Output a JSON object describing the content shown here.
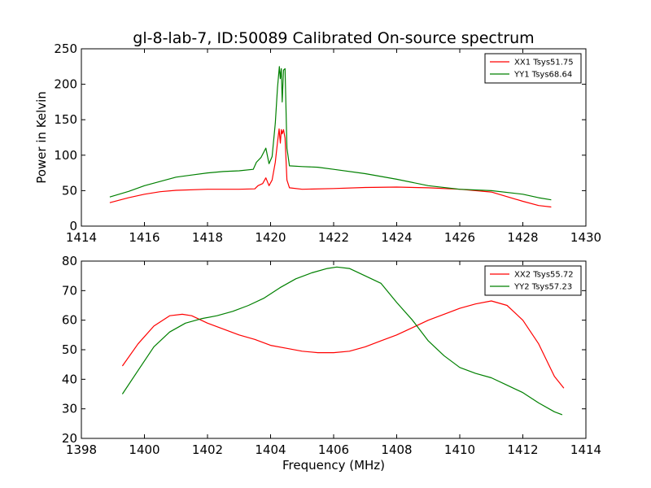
{
  "title": "gl-8-lab-7, ID:50089 Calibrated On-source spectrum",
  "chart_data": [
    {
      "type": "line",
      "title": "gl-8-lab-7, ID:50089 Calibrated On-source spectrum",
      "xlabel": "",
      "ylabel": "Power in Kelvin",
      "xlim": [
        1414,
        1430
      ],
      "ylim": [
        0,
        250
      ],
      "xticks": [
        1414,
        1416,
        1418,
        1420,
        1422,
        1424,
        1426,
        1428,
        1430
      ],
      "yticks": [
        0,
        50,
        100,
        150,
        200,
        250
      ],
      "grid": false,
      "legend_position": "top-right",
      "series": [
        {
          "name": "XX1 Tsys51.75",
          "color": "#ff0000",
          "points": [
            [
              1414.9,
              33
            ],
            [
              1415.5,
              40
            ],
            [
              1416,
              45
            ],
            [
              1416.5,
              48.5
            ],
            [
              1417,
              50.5
            ],
            [
              1418,
              52
            ],
            [
              1419,
              52
            ],
            [
              1419.5,
              52.5
            ],
            [
              1419.6,
              57
            ],
            [
              1419.75,
              60
            ],
            [
              1419.85,
              68
            ],
            [
              1419.95,
              57
            ],
            [
              1420.05,
              65
            ],
            [
              1420.15,
              90
            ],
            [
              1420.22,
              118
            ],
            [
              1420.27,
              137
            ],
            [
              1420.31,
              117
            ],
            [
              1420.34,
              136
            ],
            [
              1420.37,
              130
            ],
            [
              1420.41,
              136
            ],
            [
              1420.46,
              124
            ],
            [
              1420.52,
              65
            ],
            [
              1420.6,
              54
            ],
            [
              1421,
              52
            ],
            [
              1422,
              53
            ],
            [
              1423,
              54.5
            ],
            [
              1424,
              55
            ],
            [
              1425,
              54
            ],
            [
              1426,
              52
            ],
            [
              1427,
              48
            ],
            [
              1428,
              35
            ],
            [
              1428.5,
              29
            ],
            [
              1428.9,
              27
            ]
          ]
        },
        {
          "name": "YY1 Tsys68.64",
          "color": "#008000",
          "points": [
            [
              1414.9,
              41
            ],
            [
              1415.5,
              49
            ],
            [
              1416,
              57
            ],
            [
              1416.5,
              63
            ],
            [
              1417,
              69
            ],
            [
              1417.5,
              72
            ],
            [
              1418,
              75
            ],
            [
              1418.5,
              77
            ],
            [
              1419,
              78
            ],
            [
              1419.45,
              80
            ],
            [
              1419.55,
              90
            ],
            [
              1419.7,
              97
            ],
            [
              1419.85,
              110
            ],
            [
              1419.95,
              88
            ],
            [
              1420.05,
              98
            ],
            [
              1420.15,
              145
            ],
            [
              1420.22,
              195
            ],
            [
              1420.28,
              225
            ],
            [
              1420.31,
              208
            ],
            [
              1420.34,
              222
            ],
            [
              1420.37,
              175
            ],
            [
              1420.41,
              220
            ],
            [
              1420.46,
              222
            ],
            [
              1420.52,
              110
            ],
            [
              1420.6,
              85
            ],
            [
              1421,
              84
            ],
            [
              1421.5,
              83
            ],
            [
              1422,
              80
            ],
            [
              1423,
              74
            ],
            [
              1424,
              66
            ],
            [
              1425,
              57
            ],
            [
              1426,
              52
            ],
            [
              1427,
              50
            ],
            [
              1428,
              45
            ],
            [
              1428.5,
              40
            ],
            [
              1428.9,
              37
            ]
          ]
        }
      ]
    },
    {
      "type": "line",
      "title": "",
      "xlabel": "Frequency (MHz)",
      "ylabel": "",
      "xlim": [
        1398,
        1414
      ],
      "ylim": [
        20,
        80
      ],
      "xticks": [
        1398,
        1400,
        1402,
        1404,
        1406,
        1408,
        1410,
        1412,
        1414
      ],
      "yticks": [
        20,
        30,
        40,
        50,
        60,
        70,
        80
      ],
      "grid": false,
      "legend_position": "top-right",
      "series": [
        {
          "name": "XX2 Tsys55.72",
          "color": "#ff0000",
          "points": [
            [
              1399.3,
              44.5
            ],
            [
              1399.8,
              52
            ],
            [
              1400.3,
              58
            ],
            [
              1400.8,
              61.5
            ],
            [
              1401.2,
              62
            ],
            [
              1401.5,
              61.5
            ],
            [
              1402,
              59
            ],
            [
              1402.5,
              57
            ],
            [
              1403,
              55
            ],
            [
              1403.5,
              53.5
            ],
            [
              1404,
              51.5
            ],
            [
              1404.5,
              50.5
            ],
            [
              1405,
              49.5
            ],
            [
              1405.5,
              49
            ],
            [
              1406,
              49
            ],
            [
              1406.5,
              49.5
            ],
            [
              1407,
              51
            ],
            [
              1407.5,
              53
            ],
            [
              1408,
              55
            ],
            [
              1408.5,
              57.5
            ],
            [
              1409,
              60
            ],
            [
              1409.5,
              62
            ],
            [
              1410,
              64
            ],
            [
              1410.5,
              65.5
            ],
            [
              1411,
              66.5
            ],
            [
              1411.5,
              65
            ],
            [
              1412,
              60
            ],
            [
              1412.5,
              52
            ],
            [
              1413,
              41
            ],
            [
              1413.3,
              37
            ]
          ]
        },
        {
          "name": "YY2 Tsys57.23",
          "color": "#008000",
          "points": [
            [
              1399.3,
              35
            ],
            [
              1399.8,
              43
            ],
            [
              1400.3,
              51
            ],
            [
              1400.8,
              56
            ],
            [
              1401.3,
              59
            ],
            [
              1401.8,
              60.5
            ],
            [
              1402.3,
              61.5
            ],
            [
              1402.8,
              63
            ],
            [
              1403.3,
              65
            ],
            [
              1403.8,
              67.5
            ],
            [
              1404.3,
              71
            ],
            [
              1404.8,
              74
            ],
            [
              1405.3,
              76
            ],
            [
              1405.8,
              77.5
            ],
            [
              1406.1,
              78
            ],
            [
              1406.5,
              77.5
            ],
            [
              1407,
              75
            ],
            [
              1407.5,
              72.5
            ],
            [
              1408,
              66
            ],
            [
              1408.5,
              60
            ],
            [
              1409,
              53
            ],
            [
              1409.5,
              48
            ],
            [
              1410,
              44
            ],
            [
              1410.5,
              42
            ],
            [
              1411,
              40.5
            ],
            [
              1411.5,
              38
            ],
            [
              1412,
              35.5
            ],
            [
              1412.5,
              32
            ],
            [
              1413,
              29
            ],
            [
              1413.25,
              28
            ]
          ]
        }
      ]
    }
  ]
}
